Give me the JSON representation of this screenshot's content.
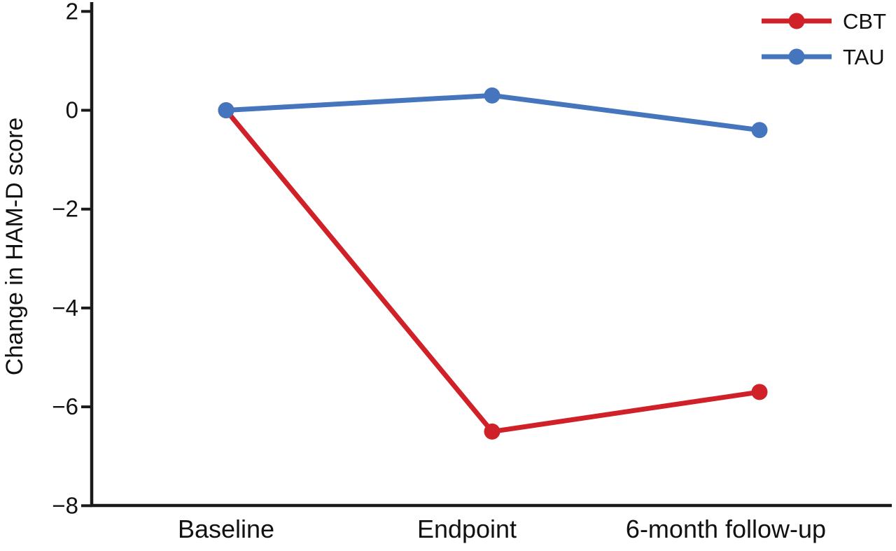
{
  "figure": {
    "background_color": "#ffffff",
    "axis_color": "#1a1a1a",
    "text_color": "#111111"
  },
  "chart_data": {
    "type": "line",
    "categories": [
      "Baseline",
      "Endpoint",
      "6-month follow-up"
    ],
    "series": [
      {
        "name": "CBT",
        "color": "#d02129",
        "values": [
          0,
          -6.5,
          -5.7
        ]
      },
      {
        "name": "TAU",
        "color": "#4575bd",
        "values": [
          0,
          0.3,
          -0.4
        ]
      }
    ],
    "title": "",
    "xlabel": "",
    "ylabel": "Change in HAM-D score",
    "ylim": [
      -8,
      2
    ],
    "yticks": [
      2,
      0,
      -2,
      -4,
      -6,
      -8
    ],
    "ytick_labels": [
      "2",
      "0",
      "−2",
      "−4",
      "−6",
      "−8"
    ],
    "grid": false,
    "legend": {
      "position": "top-right",
      "entries": [
        "CBT",
        "TAU"
      ]
    },
    "marker": "circle"
  }
}
